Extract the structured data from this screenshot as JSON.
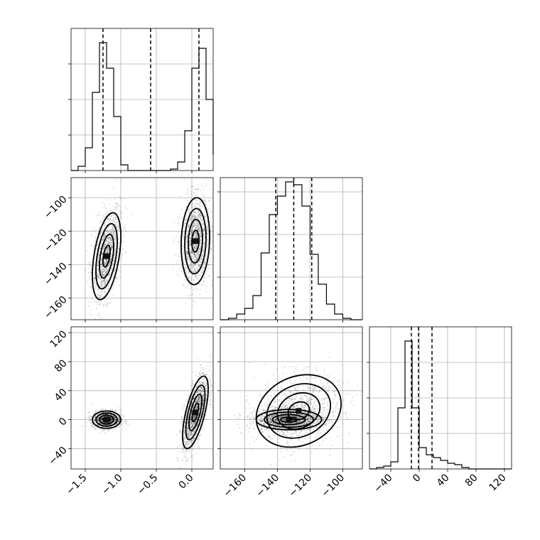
{
  "chart_data": {
    "type": "corner",
    "title": "",
    "parameters": 3,
    "grid": true,
    "quantile_line_style": "dashed",
    "panels": [
      {
        "id": "hist-p0",
        "kind": "histogram",
        "xlim": [
          -1.7,
          0.3
        ],
        "ylim": [
          0,
          1
        ],
        "x_ticks": [
          -1.5,
          -1.0,
          -0.5,
          0.0
        ],
        "x_tick_labels": [],
        "y_ticks": [
          0.25,
          0.5,
          0.75
        ],
        "bins": [
          -1.7,
          -1.6,
          -1.5,
          -1.4,
          -1.3,
          -1.2,
          -1.1,
          -1.0,
          -0.9,
          -0.8,
          -0.7,
          -0.6,
          -0.5,
          -0.4,
          -0.3,
          -0.2,
          -0.1,
          0.0,
          0.1,
          0.2,
          0.3
        ],
        "counts": [
          0.0,
          0.03,
          0.16,
          0.55,
          0.9,
          0.72,
          0.38,
          0.04,
          0.0,
          0.0,
          0.0,
          0.0,
          0.0,
          0.0,
          0.01,
          0.06,
          0.28,
          0.72,
          0.86,
          0.5,
          0.11
        ],
        "quantiles": [
          -1.25,
          -0.58,
          0.1
        ]
      },
      {
        "id": "hist-p1",
        "kind": "histogram",
        "xlim": [
          -175,
          -88
        ],
        "ylim": [
          0,
          1
        ],
        "x_ticks": [
          -160,
          -140,
          -120,
          -100
        ],
        "x_tick_labels": [],
        "y_ticks": [
          0.3,
          0.6,
          0.9
        ],
        "bins": [
          -175,
          -170,
          -165,
          -160,
          -155,
          -150,
          -145,
          -140,
          -135,
          -130,
          -125,
          -120,
          -115,
          -110,
          -105,
          -100,
          -95,
          -90,
          -88
        ],
        "counts": [
          0.0,
          0.01,
          0.04,
          0.08,
          0.17,
          0.47,
          0.74,
          0.87,
          0.97,
          0.95,
          0.8,
          0.46,
          0.25,
          0.11,
          0.04,
          0.01,
          0.0,
          0.0
        ],
        "quantiles": [
          -141,
          -130,
          -119
        ]
      },
      {
        "id": "hist-p2",
        "kind": "histogram",
        "xlim": [
          -70,
          130
        ],
        "ylim": [
          0,
          1
        ],
        "x_ticks": [
          -40,
          0,
          40,
          80,
          120
        ],
        "x_tick_labels": [
          "−40",
          "0",
          "40",
          "80",
          "120"
        ],
        "y_ticks": [
          0.25,
          0.5,
          0.75
        ],
        "bins": [
          -70,
          -60,
          -50,
          -40,
          -30,
          -20,
          -10,
          0,
          10,
          20,
          30,
          40,
          50,
          60,
          70,
          80,
          90,
          100,
          110,
          120,
          130
        ],
        "counts": [
          0.0,
          0.01,
          0.02,
          0.05,
          0.43,
          0.9,
          0.43,
          0.15,
          0.1,
          0.08,
          0.06,
          0.04,
          0.03,
          0.01,
          0.0,
          0.0,
          0.0,
          0.0,
          0.0,
          0.0
        ],
        "quantiles": [
          -11,
          -1,
          18
        ]
      },
      {
        "id": "scatter-p0-p1",
        "kind": "2d",
        "xlim": [
          -1.7,
          0.3
        ],
        "ylim": [
          -173,
          -88
        ],
        "x_ticks": [
          -1.5,
          -1.0,
          -0.5,
          0.0
        ],
        "x_tick_labels": [],
        "y_ticks": [
          -160,
          -140,
          -120,
          -100
        ],
        "y_tick_labels": [
          "−160",
          "−140",
          "−120",
          "−100"
        ],
        "modes": [
          {
            "cx": -1.2,
            "cy": -135,
            "sx": 0.1,
            "sy": 13,
            "rho": 0.45,
            "n": 1400
          },
          {
            "cx": 0.05,
            "cy": -126,
            "sx": 0.1,
            "sy": 13,
            "rho": 0.1,
            "n": 1400
          }
        ]
      },
      {
        "id": "scatter-p0-p2",
        "kind": "2d",
        "xlim": [
          -1.7,
          0.3
        ],
        "ylim": [
          -68,
          128
        ],
        "x_ticks": [
          -1.5,
          -1.0,
          -0.5,
          0.0
        ],
        "x_tick_labels": [
          "−1.5",
          "−1.0",
          "−0.5",
          "0.0"
        ],
        "y_ticks": [
          -40,
          0,
          40,
          80,
          120
        ],
        "y_tick_labels": [
          "−40",
          "0",
          "40",
          "80",
          "120"
        ],
        "modes": [
          {
            "cx": -1.2,
            "cy": 0,
            "sx": 0.1,
            "sy": 6,
            "rho": 0.0,
            "n": 1200
          },
          {
            "cx": 0.05,
            "cy": 10,
            "sx": 0.09,
            "sy": 25,
            "rho": 0.65,
            "n": 1500
          }
        ]
      },
      {
        "id": "scatter-p1-p2",
        "kind": "2d",
        "xlim": [
          -175,
          -88
        ],
        "ylim": [
          -68,
          128
        ],
        "x_ticks": [
          -160,
          -140,
          -120,
          -100
        ],
        "x_tick_labels": [
          "−160",
          "−140",
          "−120",
          "−100"
        ],
        "y_ticks": [
          -40,
          0,
          40,
          80,
          120
        ],
        "y_tick_labels": [],
        "modes": [
          {
            "cx": -133,
            "cy": 0,
            "sx": 10,
            "sy": 7,
            "rho": 0.0,
            "n": 1800
          },
          {
            "cx": -127,
            "cy": 12,
            "sx": 13,
            "sy": 25,
            "rho": 0.2,
            "n": 1000
          }
        ]
      }
    ]
  }
}
